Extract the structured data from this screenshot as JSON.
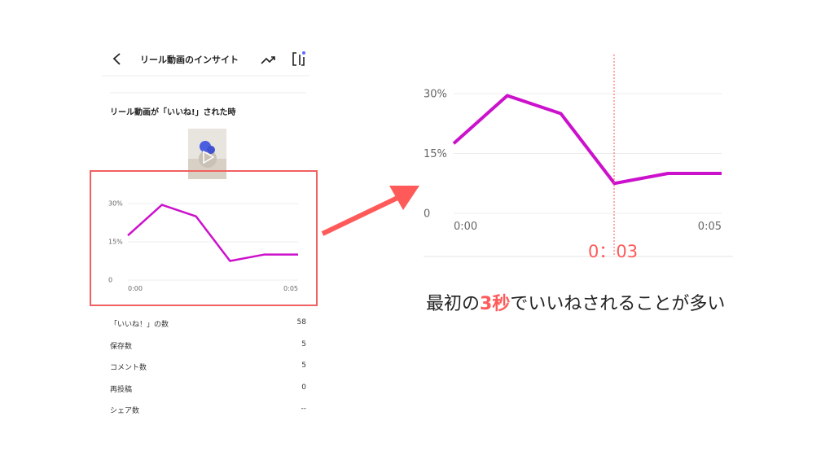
{
  "header": {
    "title": "リール動画のインサイト",
    "back_icon": "chevron-left-icon",
    "trend_icon": "trending-up-icon",
    "clip_icon": "reels-icon"
  },
  "section": {
    "title": "リール動画が「いいね!」された時"
  },
  "stats": [
    {
      "label": "「いいね！」の数",
      "value": "58"
    },
    {
      "label": "保存数",
      "value": "5"
    },
    {
      "label": "コメント数",
      "value": "5"
    },
    {
      "label": "再投稿",
      "value": "0"
    },
    {
      "label": "シェア数",
      "value": "--"
    }
  ],
  "colors": {
    "line": "#cc11cc",
    "highlight": "#ff5a5a"
  },
  "marker": {
    "label": "0：03"
  },
  "caption": {
    "pre": "最初の",
    "highlight": "3秒",
    "post": "でいいねされることが多い"
  },
  "chart_data": {
    "type": "line",
    "x": [
      0,
      1,
      2,
      3,
      4,
      5
    ],
    "values": [
      17.5,
      29.5,
      25,
      7.5,
      10,
      10
    ],
    "ytick_labels": [
      "30%",
      "15%",
      "0"
    ],
    "xtick_labels": [
      "0:00",
      "0:05"
    ],
    "ylim": [
      0,
      30
    ],
    "grid": true
  }
}
